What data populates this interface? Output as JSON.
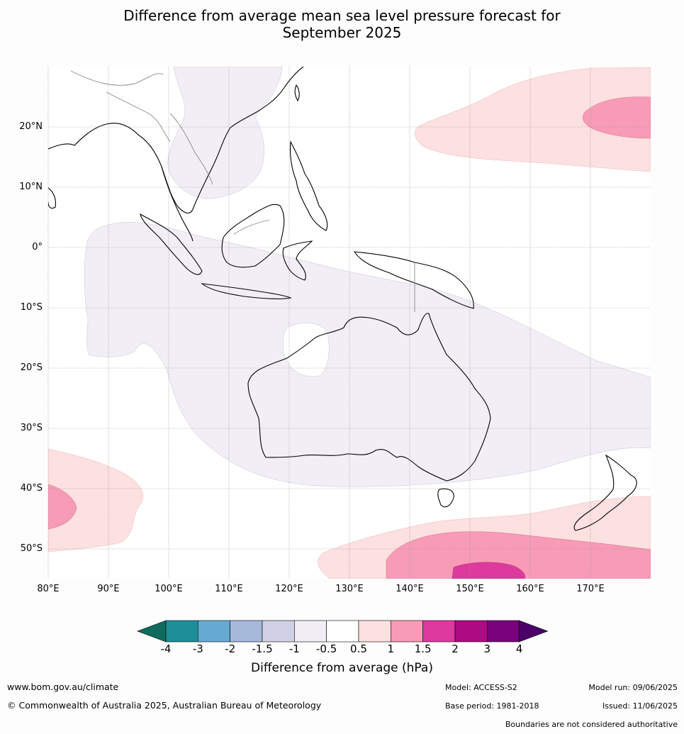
{
  "title_line1": "Difference from average mean sea level pressure forecast for",
  "title_line2": "September 2025",
  "lat_labels": [
    "20°N",
    "10°N",
    "0°",
    "10°S",
    "20°S",
    "30°S",
    "40°S",
    "50°S"
  ],
  "lon_labels": [
    "80°E",
    "90°E",
    "100°E",
    "110°E",
    "120°E",
    "130°E",
    "140°E",
    "150°E",
    "160°E",
    "170°E"
  ],
  "colorbar": {
    "title": "Difference from average (hPa)",
    "ticks": [
      "-4",
      "-3",
      "-2",
      "-1.5",
      "-1",
      "-0.5",
      "0.5",
      "1",
      "1.5",
      "2",
      "3",
      "4"
    ],
    "colors": [
      "#0e6b5e",
      "#1e8e99",
      "#67aad1",
      "#a6b9db",
      "#d0d0e4",
      "#f2eef6",
      "#ffffff",
      "#fde0e0",
      "#f79bb6",
      "#dd3a9e",
      "#ad0a83",
      "#78037a",
      "#4b0168"
    ]
  },
  "footer": {
    "url": "www.bom.gov.au/climate",
    "copyright": "© Commonwealth of Australia 2025, Australian Bureau of Meteorology",
    "model": "Model: ACCESS-S2",
    "base_period": "Base period: 1981-2018",
    "model_run": "Model run: 09/06/2025",
    "issued": "Issued: 11/06/2025",
    "boundaries": "Boundaries are not considered authoritative"
  }
}
